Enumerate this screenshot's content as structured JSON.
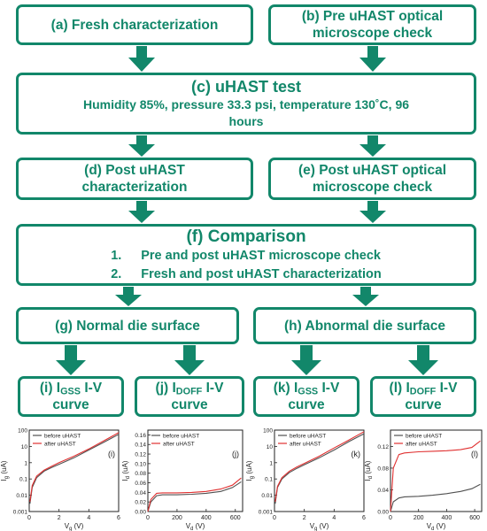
{
  "colors": {
    "primary": "#12876a",
    "before_series": "#505050",
    "after_series": "#e03030"
  },
  "boxes": {
    "a": "(a) Fresh characterization",
    "b_line1": "(b) Pre uHAST optical",
    "b_line2": "microscope check",
    "c_title": "(c) uHAST test",
    "c_line2": "Humidity 85%, pressure 33.3 psi, temperature 130˚C, 96",
    "c_line3": "hours",
    "d_line1": "(d) Post uHAST",
    "d_line2": "characterization",
    "e_line1": "(e) Post uHAST optical",
    "e_line2": "microscope check",
    "f_title": "(f) Comparison",
    "f_items": [
      {
        "num": "1.",
        "text": "Pre and post uHAST microscope check"
      },
      {
        "num": "2.",
        "text": "Fresh and post uHAST characterization"
      }
    ],
    "g": "(g) Normal die surface",
    "h": "(h) Abnormal die surface",
    "i_prefix": "(i) I",
    "i_sub": "GSS",
    "i_suffix": " I-V",
    "i_line2": "curve",
    "j_prefix": "(j) I",
    "j_sub": "DOFF",
    "j_suffix": " I-V",
    "j_line2": "curve",
    "k_prefix": "(k) I",
    "k_sub": "GSS",
    "k_suffix": " I-V",
    "k_line2": "curve",
    "l_prefix": "(l) I",
    "l_sub": "DOFF",
    "l_suffix": " I-V",
    "l_line2": "curve"
  },
  "chart_data": [
    {
      "panel": "(i)",
      "type": "line",
      "yscale": "log",
      "xlabel_main": "V",
      "xlabel_sub": "g",
      "xlabel_unit": " (V)",
      "ylabel_main": "I",
      "ylabel_sub": "g",
      "ylabel_unit": " (uA)",
      "xlim": [
        0,
        6
      ],
      "ylim": [
        0.001,
        100
      ],
      "xticks": [
        "0",
        "2",
        "4",
        "6"
      ],
      "xtick_values": [
        0,
        2,
        4,
        6
      ],
      "yticks": [
        "0.001",
        "0.01",
        "0.1",
        "1",
        "10",
        "100"
      ],
      "ytick_values": [
        0.001,
        0.01,
        0.1,
        1,
        10,
        100
      ],
      "legend": [
        "before uHAST",
        "after uHAST"
      ],
      "series": [
        {
          "name": "before uHAST",
          "x": [
            0.05,
            0.2,
            0.5,
            1,
            1.5,
            2,
            3,
            4,
            5,
            6
          ],
          "y": [
            0.003,
            0.03,
            0.12,
            0.3,
            0.5,
            0.8,
            2,
            6,
            18,
            55
          ]
        },
        {
          "name": "after uHAST",
          "x": [
            0.05,
            0.2,
            0.5,
            1,
            1.5,
            2,
            3,
            4,
            5,
            6
          ],
          "y": [
            0.004,
            0.04,
            0.15,
            0.35,
            0.6,
            1,
            2.5,
            7,
            22,
            70
          ]
        }
      ]
    },
    {
      "panel": "(j)",
      "type": "line",
      "yscale": "linear",
      "xlabel_main": "V",
      "xlabel_sub": "d",
      "xlabel_unit": " (V)",
      "ylabel_main": "I",
      "ylabel_sub": "d",
      "ylabel_unit": " (uA)",
      "xlim": [
        0,
        650
      ],
      "ylim": [
        0,
        0.17
      ],
      "xticks": [
        "0",
        "200",
        "400",
        "600"
      ],
      "xtick_values": [
        0,
        200,
        400,
        600
      ],
      "yticks": [
        "0.00",
        "0.02",
        "0.04",
        "0.06",
        "0.08",
        "0.10",
        "0.12",
        "0.14",
        "0.16"
      ],
      "ytick_values": [
        0,
        0.02,
        0.04,
        0.06,
        0.08,
        0.1,
        0.12,
        0.14,
        0.16
      ],
      "legend": [
        "before uHAST",
        "after uHAST"
      ],
      "series": [
        {
          "name": "before uHAST",
          "x": [
            0,
            20,
            60,
            100,
            200,
            300,
            400,
            500,
            580,
            640
          ],
          "y": [
            0.0,
            0.02,
            0.033,
            0.035,
            0.035,
            0.036,
            0.038,
            0.042,
            0.05,
            0.062
          ]
        },
        {
          "name": "after uHAST",
          "x": [
            0,
            20,
            60,
            100,
            200,
            300,
            400,
            500,
            580,
            640
          ],
          "y": [
            0.0,
            0.025,
            0.038,
            0.039,
            0.039,
            0.04,
            0.042,
            0.047,
            0.055,
            0.07
          ]
        }
      ]
    },
    {
      "panel": "(k)",
      "type": "line",
      "yscale": "log",
      "xlabel_main": "V",
      "xlabel_sub": "g",
      "xlabel_unit": " (V)",
      "ylabel_main": "I",
      "ylabel_sub": "g",
      "ylabel_unit": " (uA)",
      "xlim": [
        0,
        6
      ],
      "ylim": [
        0.001,
        100
      ],
      "xticks": [
        "0",
        "2",
        "4",
        "6"
      ],
      "xtick_values": [
        0,
        2,
        4,
        6
      ],
      "yticks": [
        "0.001",
        "0.01",
        "0.1",
        "1",
        "10",
        "100"
      ],
      "ytick_values": [
        0.001,
        0.01,
        0.1,
        1,
        10,
        100
      ],
      "legend": [
        "before uHAST",
        "after uHAST"
      ],
      "series": [
        {
          "name": "before uHAST",
          "x": [
            0.05,
            0.2,
            0.5,
            1,
            1.5,
            2,
            3,
            4,
            5,
            6
          ],
          "y": [
            0.003,
            0.03,
            0.1,
            0.25,
            0.45,
            0.75,
            2,
            6,
            20,
            60
          ]
        },
        {
          "name": "after uHAST",
          "x": [
            0.05,
            0.2,
            0.5,
            1,
            1.5,
            2,
            3,
            4,
            5,
            6
          ],
          "y": [
            0.004,
            0.035,
            0.12,
            0.3,
            0.55,
            0.9,
            2.5,
            8,
            25,
            80
          ]
        }
      ]
    },
    {
      "panel": "(l)",
      "type": "line",
      "yscale": "linear",
      "xlabel_main": "V",
      "xlabel_sub": "d",
      "xlabel_unit": " (V)",
      "ylabel_main": "I",
      "ylabel_sub": "d",
      "ylabel_unit": " (uA)",
      "xlim": [
        0,
        650
      ],
      "ylim": [
        0,
        0.15
      ],
      "xticks": [
        "0",
        "200",
        "400",
        "600"
      ],
      "xtick_values": [
        0,
        200,
        400,
        600
      ],
      "yticks": [
        "0.00",
        "0.04",
        "0.08",
        "0.12"
      ],
      "ytick_values": [
        0,
        0.04,
        0.08,
        0.12
      ],
      "legend": [
        "before uHAST",
        "after uHAST"
      ],
      "series": [
        {
          "name": "before uHAST",
          "x": [
            0,
            20,
            60,
            100,
            200,
            300,
            400,
            500,
            580,
            640
          ],
          "y": [
            0.0,
            0.018,
            0.025,
            0.027,
            0.028,
            0.03,
            0.033,
            0.037,
            0.042,
            0.05
          ]
        },
        {
          "name": "after uHAST",
          "x": [
            0,
            20,
            60,
            100,
            200,
            300,
            400,
            500,
            580,
            640
          ],
          "y": [
            0.0,
            0.08,
            0.105,
            0.108,
            0.11,
            0.111,
            0.112,
            0.114,
            0.118,
            0.13
          ]
        }
      ]
    }
  ]
}
